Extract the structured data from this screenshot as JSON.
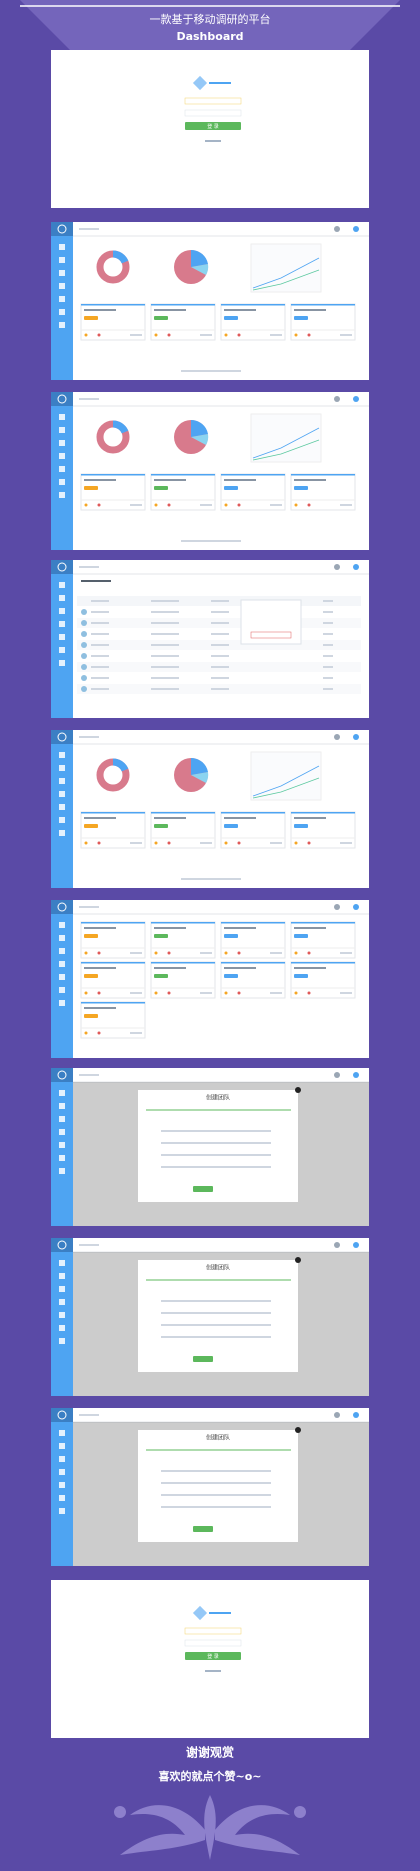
{
  "header": {
    "title": "一款基于移动调研的平台",
    "subtitle": "Dashboard"
  },
  "screens": [
    {
      "kind": "login",
      "button": "登 录"
    },
    {
      "kind": "dashboard"
    },
    {
      "kind": "dashboard"
    },
    {
      "kind": "table"
    },
    {
      "kind": "dashboard"
    },
    {
      "kind": "cards"
    },
    {
      "kind": "modal",
      "title": "创建团队"
    },
    {
      "kind": "modal",
      "title": "创建团队"
    },
    {
      "kind": "modal",
      "title": "创建团队"
    },
    {
      "kind": "login",
      "button": "登 录"
    }
  ],
  "footer": {
    "thanks": "谢谢观赏",
    "like": "喜欢的就点个赞~o~"
  }
}
